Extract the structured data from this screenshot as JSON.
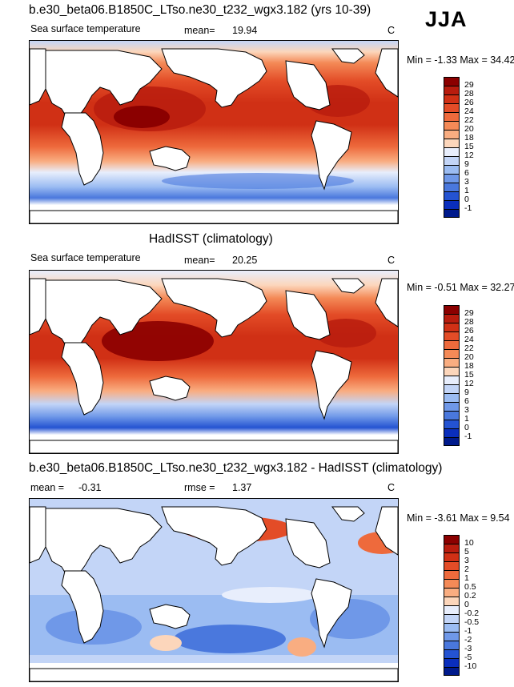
{
  "season": "JJA",
  "panels": [
    {
      "title": "b.e30_beta06.B1850C_LTso.ne30_t232_wgx3.182 (yrs 10-39)",
      "variable": "Sea surface temperature",
      "mean_label": "mean=",
      "mean": "19.94",
      "units": "C",
      "minmax": "Min = -1.33 Max = 34.42",
      "levels": [
        "29",
        "28",
        "26",
        "24",
        "22",
        "20",
        "18",
        "15",
        "12",
        "9",
        "6",
        "3",
        "1",
        "0",
        "-1"
      ],
      "colors": [
        "#8b0000",
        "#b81c0e",
        "#d03015",
        "#e34c27",
        "#ee6a3c",
        "#f48a57",
        "#f9ad81",
        "#fcd6bb",
        "#e8eefc",
        "#c3d5f7",
        "#9bbcf2",
        "#6f98e8",
        "#4a78dd",
        "#2453d2",
        "#0a2ebd",
        "#001a8c"
      ]
    },
    {
      "title": "HadISST (climatology)",
      "variable": "Sea surface temperature",
      "mean_label": "mean=",
      "mean": "20.25",
      "units": "C",
      "minmax": "Min = -0.51 Max = 32.27",
      "levels": [
        "29",
        "28",
        "26",
        "24",
        "22",
        "20",
        "18",
        "15",
        "12",
        "9",
        "6",
        "3",
        "1",
        "0",
        "-1"
      ],
      "colors": [
        "#8b0000",
        "#b81c0e",
        "#d03015",
        "#e34c27",
        "#ee6a3c",
        "#f48a57",
        "#f9ad81",
        "#fcd6bb",
        "#e8eefc",
        "#c3d5f7",
        "#9bbcf2",
        "#6f98e8",
        "#4a78dd",
        "#2453d2",
        "#0a2ebd",
        "#001a8c"
      ]
    },
    {
      "title": "b.e30_beta06.B1850C_LTso.ne30_t232_wgx3.182 - HadISST (climatology)",
      "mean_label": "mean =",
      "mean": "-0.31",
      "rmse_label": "rmse =",
      "rmse": "1.37",
      "units": "C",
      "minmax": "Min = -3.61 Max =  9.54",
      "levels": [
        "10",
        "5",
        "3",
        "2",
        "1",
        "0.5",
        "0.2",
        "0",
        "-0.2",
        "-0.5",
        "-1",
        "-2",
        "-3",
        "-5",
        "-10"
      ],
      "colors": [
        "#8b0000",
        "#b81c0e",
        "#d03015",
        "#e34c27",
        "#ee6a3c",
        "#f48a57",
        "#f9ad81",
        "#fcd6bb",
        "#e8eefc",
        "#c3d5f7",
        "#9bbcf2",
        "#6f98e8",
        "#4a78dd",
        "#2453d2",
        "#0a2ebd",
        "#001a8c"
      ]
    }
  ]
}
